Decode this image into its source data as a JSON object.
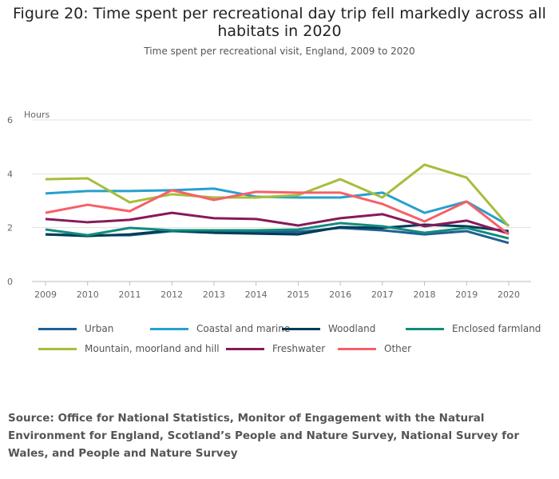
{
  "chart_data": {
    "type": "line",
    "title": "Figure 20: Time spent per recreational day trip fell markedly across all habitats in 2020",
    "subtitle": "Time spent per recreational visit, England, 2009 to 2020",
    "ylabel": "Hours",
    "xlabel": "",
    "ylim": [
      0,
      6
    ],
    "yticks": [
      "0",
      "2",
      "4",
      "6"
    ],
    "grid": true,
    "legend_position": "bottom",
    "x": [
      "2009",
      "2010",
      "2011",
      "2012",
      "2013",
      "2014",
      "2015",
      "2016",
      "2017",
      "2018",
      "2019",
      "2020"
    ],
    "series": [
      {
        "name": "Urban",
        "color": "#206095",
        "values": [
          1.75,
          1.72,
          1.72,
          1.87,
          1.81,
          1.84,
          1.84,
          1.99,
          1.9,
          1.75,
          1.87,
          1.43
        ]
      },
      {
        "name": "Coastal and marine",
        "color": "#27a0cc",
        "values": [
          3.27,
          3.36,
          3.36,
          3.39,
          3.45,
          3.15,
          3.12,
          3.12,
          3.3,
          2.55,
          2.97,
          2.08
        ]
      },
      {
        "name": "Woodland",
        "color": "#003c57",
        "values": [
          1.75,
          1.69,
          1.75,
          1.9,
          1.81,
          1.78,
          1.75,
          2.02,
          1.99,
          2.11,
          2.05,
          1.87
        ]
      },
      {
        "name": "Enclosed farmland",
        "color": "#118c7b",
        "values": [
          1.93,
          1.72,
          1.99,
          1.9,
          1.9,
          1.9,
          1.93,
          2.17,
          2.05,
          1.81,
          1.99,
          1.6
        ]
      },
      {
        "name": "Mountain, moorland and hill",
        "color": "#a8bd3a",
        "values": [
          3.8,
          3.83,
          2.94,
          3.24,
          3.12,
          3.12,
          3.21,
          3.8,
          3.12,
          4.34,
          3.86,
          2.05
        ]
      },
      {
        "name": "Freshwater",
        "color": "#871a5b",
        "values": [
          2.32,
          2.2,
          2.29,
          2.55,
          2.35,
          2.32,
          2.08,
          2.35,
          2.5,
          2.05,
          2.26,
          1.78
        ]
      },
      {
        "name": "Other",
        "color": "#f66068",
        "values": [
          2.55,
          2.85,
          2.61,
          3.39,
          3.03,
          3.33,
          3.3,
          3.3,
          2.88,
          2.23,
          2.97,
          1.75
        ]
      }
    ]
  },
  "source": "Source: Office for National Statistics, Monitor of Engagement with the Natural Environment for England, Scotland’s People and Nature Survey, National Survey for Wales, and People and Nature Survey"
}
